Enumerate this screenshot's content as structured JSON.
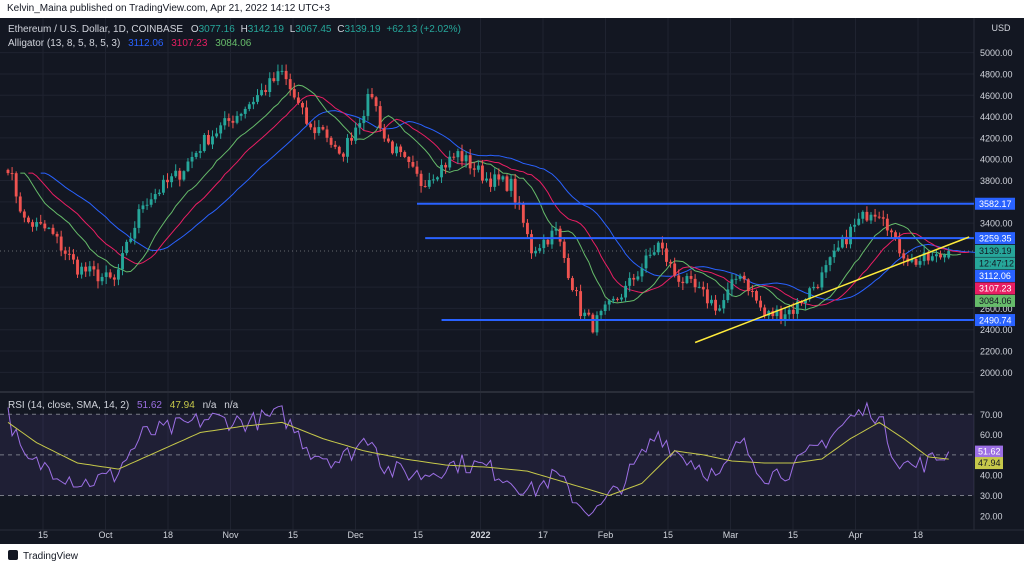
{
  "header": {
    "published": "Kelvin_Maina published on TradingView.com, Apr 21, 2022 14:12 UTC+3"
  },
  "footer": {
    "brand": "TradingView"
  },
  "colors": {
    "background": "#131722",
    "up": "#26a69a",
    "down": "#ef5350",
    "jaw": "#2962ff",
    "teeth": "#e91e63",
    "lips": "#66bb6a",
    "level_line": "#2962ff",
    "trendline": "#ffeb3b",
    "rsi": "#9c6fe4",
    "rsi_ma": "#c6c84a"
  },
  "chart_data": [
    {
      "type": "candlestick",
      "symbol_line": {
        "name": "Ethereum / U.S. Dollar, 1D, COINBASE",
        "o_label": "O",
        "o": "3077.16",
        "h_label": "H",
        "h": "3142.19",
        "l_label": "L",
        "l": "3067.45",
        "c_label": "C",
        "c": "3139.19",
        "change": "+62.13 (+2.02%)"
      },
      "indicator_line": {
        "name": "Alligator (13, 8, 5, 8, 5, 3)",
        "jaw": "3112.06",
        "teeth": "3107.23",
        "lips": "3084.06"
      },
      "y_unit": "USD",
      "ylim": [
        1900,
        5100
      ],
      "y_ticks": [
        "5000.00",
        "4800.00",
        "4600.00",
        "4400.00",
        "4200.00",
        "4000.00",
        "3800.00",
        "3600.00",
        "3400.00",
        "2800.00",
        "2600.00",
        "2400.00",
        "2200.00",
        "2000.00"
      ],
      "x_ticks": [
        "15",
        "Oct",
        "18",
        "Nov",
        "15",
        "Dec",
        "15",
        "2022",
        "17",
        "Feb",
        "15",
        "Mar",
        "15",
        "Apr",
        "18"
      ],
      "key_points": [
        {
          "date": "2021-09-03",
          "close": 3940
        },
        {
          "date": "2021-09-07",
          "close": 3420
        },
        {
          "date": "2021-09-13",
          "close": 3330
        },
        {
          "date": "2021-09-20",
          "close": 2980
        },
        {
          "date": "2021-09-29",
          "close": 2850
        },
        {
          "date": "2021-10-06",
          "close": 3590
        },
        {
          "date": "2021-10-15",
          "close": 3870
        },
        {
          "date": "2021-10-21",
          "close": 4170
        },
        {
          "date": "2021-10-29",
          "close": 4420
        },
        {
          "date": "2021-11-09",
          "close": 4810
        },
        {
          "date": "2021-11-16",
          "close": 4270
        },
        {
          "date": "2021-11-19",
          "close": 4300
        },
        {
          "date": "2021-11-23",
          "close": 4000
        },
        {
          "date": "2021-12-01",
          "close": 4620
        },
        {
          "date": "2021-12-04",
          "close": 4200
        },
        {
          "date": "2021-12-13",
          "close": 3780
        },
        {
          "date": "2021-12-22",
          "close": 4050
        },
        {
          "date": "2021-12-29",
          "close": 3820
        },
        {
          "date": "2022-01-04",
          "close": 3760
        },
        {
          "date": "2022-01-09",
          "close": 3150
        },
        {
          "date": "2022-01-15",
          "close": 3320
        },
        {
          "date": "2022-01-21",
          "close": 2580
        },
        {
          "date": "2022-01-24",
          "close": 2440
        },
        {
          "date": "2022-02-01",
          "close": 2780
        },
        {
          "date": "2022-02-09",
          "close": 3200
        },
        {
          "date": "2022-02-13",
          "close": 2920
        },
        {
          "date": "2022-02-18",
          "close": 2780
        },
        {
          "date": "2022-02-24",
          "close": 2600
        },
        {
          "date": "2022-03-01",
          "close": 2950
        },
        {
          "date": "2022-03-07",
          "close": 2530
        },
        {
          "date": "2022-03-14",
          "close": 2590
        },
        {
          "date": "2022-03-21",
          "close": 2900
        },
        {
          "date": "2022-03-28",
          "close": 3330
        },
        {
          "date": "2022-04-02",
          "close": 3530
        },
        {
          "date": "2022-04-05",
          "close": 3500
        },
        {
          "date": "2022-04-08",
          "close": 3200
        },
        {
          "date": "2022-04-12",
          "close": 3040
        },
        {
          "date": "2022-04-18",
          "close": 3070
        },
        {
          "date": "2022-04-21",
          "close": 3139.19
        }
      ],
      "horizontal_levels": [
        {
          "label": "3582.17",
          "value": 3582.17,
          "from": "2021-12-12"
        },
        {
          "label": "3259.35",
          "value": 3259.35,
          "from": "2021-12-14"
        },
        {
          "label": "2490.74",
          "value": 2490.74,
          "from": "2021-12-18"
        }
      ],
      "trendline": [
        {
          "date": "2022-02-18",
          "value": 2280
        },
        {
          "date": "2022-04-26",
          "value": 3270
        }
      ],
      "price_tags": [
        {
          "label": "3139.19",
          "role": "last"
        },
        {
          "label": "12:47:12",
          "role": "countdown"
        },
        {
          "label": "3112.06",
          "role": "jaw"
        },
        {
          "label": "3107.23",
          "role": "teeth"
        },
        {
          "label": "3084.06",
          "role": "lips"
        }
      ]
    },
    {
      "type": "line",
      "name": "RSI (14, close, SMA, 14, 2)",
      "rsi_value": "51.62",
      "ma_value": "47.94",
      "na1": "n/a",
      "na2": "n/a",
      "ylim": [
        15,
        78
      ],
      "y_ticks": [
        "70.00",
        "60.00",
        "40.00",
        "30.00",
        "20.00"
      ],
      "bands": [
        70,
        50,
        30
      ],
      "series": [
        {
          "role": "rsi",
          "points": [
            {
              "date": "2021-09-03",
              "value": 70
            },
            {
              "date": "2021-09-07",
              "value": 47
            },
            {
              "date": "2021-09-13",
              "value": 44
            },
            {
              "date": "2021-09-21",
              "value": 36
            },
            {
              "date": "2021-09-29",
              "value": 40
            },
            {
              "date": "2021-10-06",
              "value": 60
            },
            {
              "date": "2021-10-15",
              "value": 64
            },
            {
              "date": "2021-10-22",
              "value": 68
            },
            {
              "date": "2021-11-01",
              "value": 66
            },
            {
              "date": "2021-11-09",
              "value": 70
            },
            {
              "date": "2021-11-16",
              "value": 52
            },
            {
              "date": "2021-11-23",
              "value": 47
            },
            {
              "date": "2021-12-01",
              "value": 60
            },
            {
              "date": "2021-12-04",
              "value": 43
            },
            {
              "date": "2021-12-13",
              "value": 40
            },
            {
              "date": "2021-12-22",
              "value": 46
            },
            {
              "date": "2021-12-29",
              "value": 44
            },
            {
              "date": "2022-01-09",
              "value": 32
            },
            {
              "date": "2022-01-15",
              "value": 40
            },
            {
              "date": "2022-01-21",
              "value": 25
            },
            {
              "date": "2022-01-25",
              "value": 22
            },
            {
              "date": "2022-02-01",
              "value": 38
            },
            {
              "date": "2022-02-09",
              "value": 61
            },
            {
              "date": "2022-02-13",
              "value": 52
            },
            {
              "date": "2022-02-18",
              "value": 46
            },
            {
              "date": "2022-02-24",
              "value": 38
            },
            {
              "date": "2022-03-01",
              "value": 57
            },
            {
              "date": "2022-03-07",
              "value": 40
            },
            {
              "date": "2022-03-14",
              "value": 43
            },
            {
              "date": "2022-03-21",
              "value": 56
            },
            {
              "date": "2022-03-28",
              "value": 68
            },
            {
              "date": "2022-04-02",
              "value": 73
            },
            {
              "date": "2022-04-05",
              "value": 64
            },
            {
              "date": "2022-04-08",
              "value": 49
            },
            {
              "date": "2022-04-12",
              "value": 44
            },
            {
              "date": "2022-04-18",
              "value": 48
            },
            {
              "date": "2022-04-21",
              "value": 51.62
            }
          ]
        },
        {
          "role": "ma",
          "points": [
            {
              "date": "2021-09-03",
              "value": 66
            },
            {
              "date": "2021-09-10",
              "value": 56
            },
            {
              "date": "2021-09-20",
              "value": 46
            },
            {
              "date": "2021-09-30",
              "value": 43
            },
            {
              "date": "2021-10-10",
              "value": 52
            },
            {
              "date": "2021-10-20",
              "value": 61
            },
            {
              "date": "2021-10-30",
              "value": 64
            },
            {
              "date": "2021-11-09",
              "value": 66
            },
            {
              "date": "2021-11-19",
              "value": 58
            },
            {
              "date": "2021-11-29",
              "value": 52
            },
            {
              "date": "2021-12-09",
              "value": 48
            },
            {
              "date": "2021-12-19",
              "value": 45
            },
            {
              "date": "2021-12-29",
              "value": 44
            },
            {
              "date": "2022-01-08",
              "value": 42
            },
            {
              "date": "2022-01-18",
              "value": 36
            },
            {
              "date": "2022-01-28",
              "value": 30
            },
            {
              "date": "2022-02-05",
              "value": 36
            },
            {
              "date": "2022-02-13",
              "value": 52
            },
            {
              "date": "2022-02-20",
              "value": 50
            },
            {
              "date": "2022-02-27",
              "value": 47
            },
            {
              "date": "2022-03-07",
              "value": 46
            },
            {
              "date": "2022-03-14",
              "value": 46
            },
            {
              "date": "2022-03-21",
              "value": 48
            },
            {
              "date": "2022-03-28",
              "value": 58
            },
            {
              "date": "2022-04-04",
              "value": 66
            },
            {
              "date": "2022-04-10",
              "value": 58
            },
            {
              "date": "2022-04-16",
              "value": 49
            },
            {
              "date": "2022-04-21",
              "value": 47.94
            }
          ]
        }
      ]
    }
  ]
}
